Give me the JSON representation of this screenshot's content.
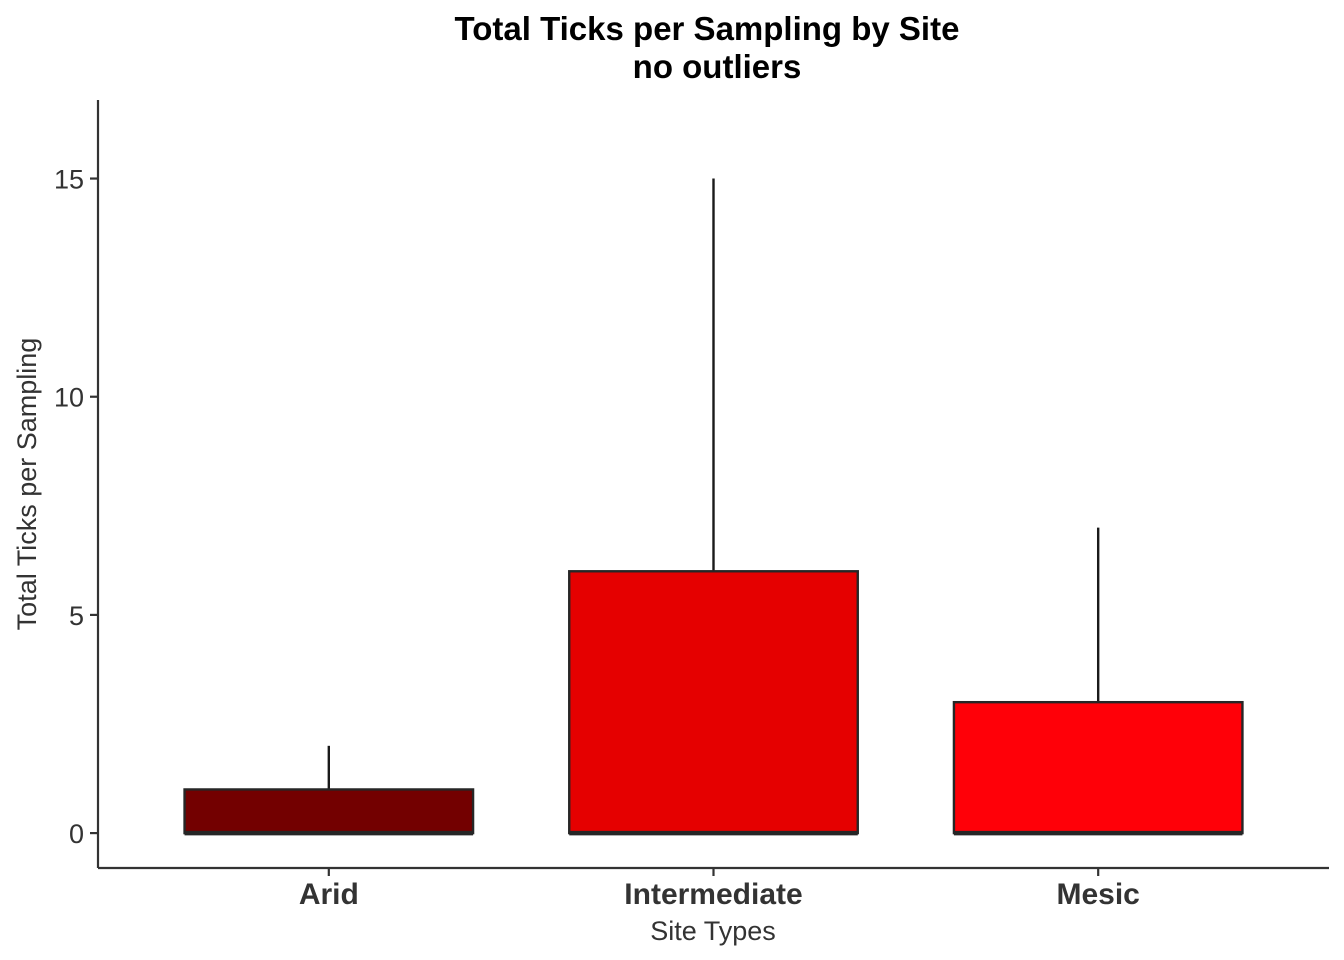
{
  "chart_data": {
    "type": "boxplot",
    "title": "Total Ticks per Sampling by Site",
    "subtitle": "no outliers",
    "xlabel": "Site Types",
    "ylabel": "Total Ticks per Sampling",
    "categories": [
      "Arid",
      "Intermediate",
      "Mesic"
    ],
    "boxes": [
      {
        "category": "Arid",
        "min": 0,
        "q1": 0,
        "median": 0,
        "q3": 1,
        "max": 2,
        "color": "#730000"
      },
      {
        "category": "Intermediate",
        "min": 0,
        "q1": 0,
        "median": 0,
        "q3": 6,
        "max": 15,
        "color": "#E50000"
      },
      {
        "category": "Mesic",
        "min": 0,
        "q1": 0,
        "median": 0,
        "q3": 3,
        "max": 7,
        "color": "#FF0008"
      }
    ],
    "ylim": [
      -0.8,
      16.8
    ],
    "yticks": [
      0,
      5,
      10,
      15
    ],
    "ytick_labels": [
      "0",
      "5",
      "10",
      "15"
    ],
    "grid": false,
    "legend": "none",
    "colors": {
      "axis": "#333333",
      "box_outline": "#262626",
      "whisker": "#1a1a1a"
    }
  }
}
